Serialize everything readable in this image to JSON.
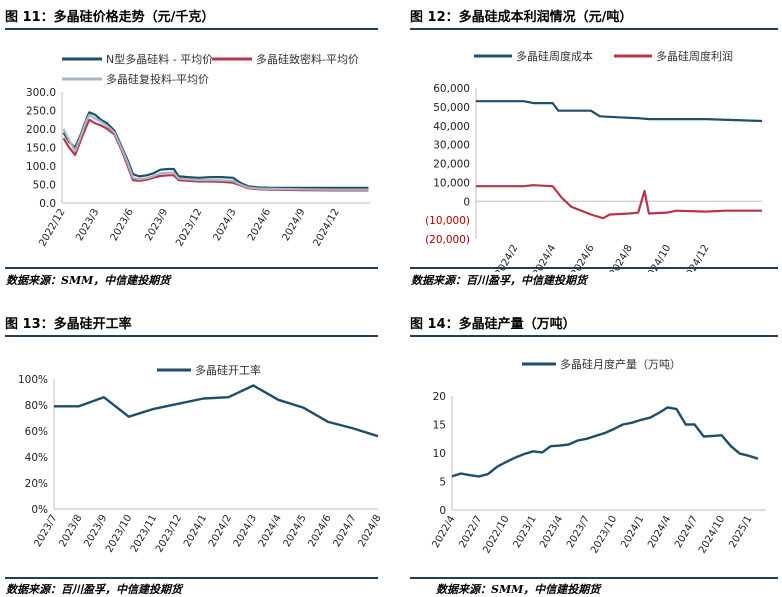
{
  "panels": [
    {
      "title": "图 11：多晶硅价格走势（元/千克）",
      "source": "数据来源：SMM，中信建投期货"
    },
    {
      "title": "图 12：多晶硅成本利润情况（元/吨）",
      "source": "数据来源：百川盈孚，中信建投期货"
    },
    {
      "title": "图 13：多晶硅开工率",
      "source": "数据来源：百川盈孚，中信建投期货"
    },
    {
      "title": "图 14：多晶硅产量（万吨）",
      "source": "数据来源：SMM，中信建投期货"
    }
  ],
  "chart_data": [
    {
      "type": "line",
      "ylim": [
        0,
        300
      ],
      "yticks": [
        0,
        50,
        100,
        150,
        200,
        250,
        300
      ],
      "ytick_labels": [
        "0.0",
        "50.0",
        "100.0",
        "150.0",
        "200.0",
        "250.0",
        "300.0"
      ],
      "xlim": [
        "2022-12-01",
        "2025-03-01"
      ],
      "xtick_labels": [
        "2022/12",
        "2023/3",
        "2023/6",
        "2023/9",
        "2023/12",
        "2024/3",
        "2024/6",
        "2024/9",
        "2024/12"
      ],
      "legend_placement": "top",
      "series": [
        {
          "name": "N型多晶硅料 - 平均价",
          "color": "#1f4e6b",
          "points": [
            [
              "2022-12-05",
              190
            ],
            [
              "2022-12-20",
              165
            ],
            [
              "2023-01-05",
              150
            ],
            [
              "2023-01-20",
              185
            ],
            [
              "2023-02-05",
              230
            ],
            [
              "2023-02-12",
              245
            ],
            [
              "2023-02-28",
              238
            ],
            [
              "2023-03-15",
              225
            ],
            [
              "2023-04-01",
              215
            ],
            [
              "2023-04-20",
              195
            ],
            [
              "2023-05-10",
              150
            ],
            [
              "2023-05-25",
              115
            ],
            [
              "2023-06-08",
              78
            ],
            [
              "2023-06-25",
              72
            ],
            [
              "2023-07-15",
              75
            ],
            [
              "2023-08-01",
              80
            ],
            [
              "2023-08-20",
              90
            ],
            [
              "2023-09-10",
              92
            ],
            [
              "2023-09-25",
              92
            ],
            [
              "2023-10-08",
              72
            ],
            [
              "2023-11-01",
              70
            ],
            [
              "2023-12-01",
              68
            ],
            [
              "2024-01-01",
              70
            ],
            [
              "2024-02-01",
              70
            ],
            [
              "2024-03-01",
              68
            ],
            [
              "2024-03-20",
              55
            ],
            [
              "2024-04-10",
              45
            ],
            [
              "2024-05-10",
              42
            ],
            [
              "2024-06-15",
              41
            ],
            [
              "2024-09-01",
              41
            ],
            [
              "2024-12-01",
              41
            ],
            [
              "2025-02-25",
              41
            ]
          ]
        },
        {
          "name": "多晶硅致密料-平均价",
          "color": "#b5354b",
          "points": [
            [
              "2022-12-05",
              175
            ],
            [
              "2022-12-20",
              150
            ],
            [
              "2023-01-05",
              130
            ],
            [
              "2023-01-20",
              170
            ],
            [
              "2023-02-05",
              210
            ],
            [
              "2023-02-12",
              225
            ],
            [
              "2023-02-28",
              215
            ],
            [
              "2023-03-15",
              210
            ],
            [
              "2023-04-01",
              200
            ],
            [
              "2023-04-20",
              185
            ],
            [
              "2023-05-10",
              140
            ],
            [
              "2023-05-25",
              100
            ],
            [
              "2023-06-08",
              62
            ],
            [
              "2023-06-25",
              60
            ],
            [
              "2023-07-15",
              63
            ],
            [
              "2023-08-01",
              68
            ],
            [
              "2023-08-20",
              73
            ],
            [
              "2023-09-10",
              75
            ],
            [
              "2023-09-25",
              75
            ],
            [
              "2023-10-08",
              62
            ],
            [
              "2023-11-01",
              60
            ],
            [
              "2023-12-01",
              58
            ],
            [
              "2024-01-01",
              58
            ],
            [
              "2024-02-01",
              57
            ],
            [
              "2024-03-01",
              55
            ],
            [
              "2024-03-20",
              48
            ],
            [
              "2024-04-10",
              40
            ],
            [
              "2024-05-10",
              37
            ],
            [
              "2024-06-15",
              36
            ],
            [
              "2024-09-01",
              35
            ],
            [
              "2024-12-01",
              34
            ],
            [
              "2025-02-25",
              34
            ]
          ]
        },
        {
          "name": "多晶硅复投料-平均价",
          "color": "#a7b4c2",
          "points": [
            [
              "2022-12-05",
              200
            ],
            [
              "2022-12-20",
              170
            ],
            [
              "2023-01-05",
              140
            ],
            [
              "2023-01-20",
              180
            ],
            [
              "2023-02-05",
              225
            ],
            [
              "2023-02-12",
              238
            ],
            [
              "2023-02-28",
              228
            ],
            [
              "2023-03-15",
              220
            ],
            [
              "2023-04-01",
              208
            ],
            [
              "2023-04-20",
              190
            ],
            [
              "2023-05-10",
              145
            ],
            [
              "2023-05-25",
              108
            ],
            [
              "2023-06-08",
              68
            ],
            [
              "2023-06-25",
              64
            ],
            [
              "2023-07-15",
              67
            ],
            [
              "2023-08-01",
              72
            ],
            [
              "2023-08-20",
              80
            ],
            [
              "2023-09-10",
              82
            ],
            [
              "2023-09-25",
              82
            ],
            [
              "2023-10-08",
              66
            ],
            [
              "2023-11-01",
              64
            ],
            [
              "2023-12-01",
              62
            ],
            [
              "2024-01-01",
              62
            ],
            [
              "2024-02-01",
              61
            ],
            [
              "2024-03-01",
              60
            ],
            [
              "2024-03-20",
              50
            ],
            [
              "2024-04-10",
              42
            ],
            [
              "2024-05-10",
              39
            ],
            [
              "2024-06-15",
              38
            ],
            [
              "2024-09-01",
              37
            ],
            [
              "2024-12-01",
              36
            ],
            [
              "2025-02-25",
              36
            ]
          ]
        }
      ]
    },
    {
      "type": "line",
      "ylim": [
        -20000,
        60000
      ],
      "yticks": [
        -20000,
        -10000,
        0,
        10000,
        20000,
        30000,
        40000,
        50000,
        60000
      ],
      "ytick_labels": [
        "(20,000)",
        "(10,000)",
        "0",
        "10,000",
        "20,000",
        "30,000",
        "40,000",
        "50,000",
        "60,000"
      ],
      "xlim": [
        "2023-12-01",
        "2025-02-28"
      ],
      "xtick_labels": [
        "2024/2",
        "2024/4",
        "2024/6",
        "2024/8",
        "2024/10",
        "2024/12"
      ],
      "legend_placement": "top",
      "series": [
        {
          "name": "多晶硅周度成本",
          "color": "#1f4e6b",
          "points": [
            [
              "2023-12-01",
              53000
            ],
            [
              "2024-02-15",
              53000
            ],
            [
              "2024-03-01",
              52000
            ],
            [
              "2024-04-01",
              52000
            ],
            [
              "2024-04-10",
              48000
            ],
            [
              "2024-05-01",
              48000
            ],
            [
              "2024-06-01",
              48000
            ],
            [
              "2024-06-15",
              45000
            ],
            [
              "2024-07-15",
              44500
            ],
            [
              "2024-08-15",
              44000
            ],
            [
              "2024-09-01",
              43500
            ],
            [
              "2024-12-01",
              43500
            ],
            [
              "2025-02-28",
              42500
            ]
          ]
        },
        {
          "name": "多晶硅周度利润",
          "color": "#b5354b",
          "points": [
            [
              "2023-12-01",
              8000
            ],
            [
              "2024-02-15",
              8000
            ],
            [
              "2024-03-01",
              8500
            ],
            [
              "2024-04-01",
              8000
            ],
            [
              "2024-04-15",
              2000
            ],
            [
              "2024-05-01",
              -3000
            ],
            [
              "2024-06-01",
              -7000
            ],
            [
              "2024-06-20",
              -9000
            ],
            [
              "2024-07-01",
              -7000
            ],
            [
              "2024-08-01",
              -6500
            ],
            [
              "2024-08-15",
              -6000
            ],
            [
              "2024-08-25",
              5500
            ],
            [
              "2024-09-01",
              -6500
            ],
            [
              "2024-09-30",
              -6000
            ],
            [
              "2024-10-15",
              -5000
            ],
            [
              "2024-12-01",
              -5500
            ],
            [
              "2025-01-01",
              -5000
            ],
            [
              "2025-02-28",
              -5000
            ]
          ]
        }
      ]
    },
    {
      "type": "line",
      "ylim": [
        0,
        100
      ],
      "yticks": [
        0,
        20,
        40,
        60,
        80,
        100
      ],
      "ytick_labels": [
        "0%",
        "20%",
        "40%",
        "60%",
        "80%",
        "100%"
      ],
      "categories": [
        "2023/7",
        "2023/8",
        "2023/9",
        "2023/10",
        "2023/11",
        "2023/12",
        "2024/1",
        "2024/2",
        "2024/3",
        "2024/4",
        "2024/5",
        "2024/6",
        "2024/7",
        "2024/8"
      ],
      "legend_placement": "top",
      "series": [
        {
          "name": "多晶硅开工率",
          "color": "#1f4e6b",
          "values": [
            79,
            79,
            86,
            71,
            77,
            81,
            85,
            86,
            95,
            84,
            78,
            67,
            62,
            56
          ]
        }
      ]
    },
    {
      "type": "line",
      "ylim": [
        0,
        20
      ],
      "yticks": [
        0,
        5,
        10,
        15,
        20
      ],
      "ytick_labels": [
        "0",
        "5",
        "10",
        "15",
        "20"
      ],
      "xlim": [
        "2022-04-01",
        "2025-02-28"
      ],
      "xtick_labels": [
        "2022/4",
        "2022/7",
        "2022/10",
        "2023/1",
        "2023/4",
        "2023/7",
        "2023/10",
        "2024/1",
        "2024/4",
        "2024/7",
        "2024/10",
        "2025/1"
      ],
      "legend_placement": "top",
      "series": [
        {
          "name": "多晶硅月度产量（万吨）",
          "color": "#1f4e6b",
          "points": [
            [
              "2022-04-01",
              5.9
            ],
            [
              "2022-05-01",
              6.4
            ],
            [
              "2022-06-01",
              6.1
            ],
            [
              "2022-07-01",
              5.9
            ],
            [
              "2022-08-01",
              6.3
            ],
            [
              "2022-09-01",
              7.6
            ],
            [
              "2022-10-01",
              8.4
            ],
            [
              "2022-11-01",
              9.2
            ],
            [
              "2022-12-01",
              9.8
            ],
            [
              "2023-01-01",
              10.3
            ],
            [
              "2023-02-01",
              10.1
            ],
            [
              "2023-03-01",
              11.2
            ],
            [
              "2023-04-01",
              11.3
            ],
            [
              "2023-05-01",
              11.5
            ],
            [
              "2023-06-01",
              12.2
            ],
            [
              "2023-07-01",
              12.5
            ],
            [
              "2023-08-01",
              13.0
            ],
            [
              "2023-09-01",
              13.5
            ],
            [
              "2023-10-01",
              14.2
            ],
            [
              "2023-11-01",
              15.0
            ],
            [
              "2023-12-01",
              15.3
            ],
            [
              "2024-01-01",
              15.8
            ],
            [
              "2024-02-01",
              16.2
            ],
            [
              "2024-03-01",
              17.0
            ],
            [
              "2024-04-01",
              18.0
            ],
            [
              "2024-05-01",
              17.7
            ],
            [
              "2024-06-01",
              15.0
            ],
            [
              "2024-07-01",
              15.0
            ],
            [
              "2024-08-01",
              12.9
            ],
            [
              "2024-09-01",
              13.0
            ],
            [
              "2024-10-01",
              13.1
            ],
            [
              "2024-11-01",
              11.2
            ],
            [
              "2024-12-01",
              9.9
            ],
            [
              "2025-01-01",
              9.5
            ],
            [
              "2025-02-01",
              9.0
            ]
          ]
        }
      ]
    }
  ]
}
